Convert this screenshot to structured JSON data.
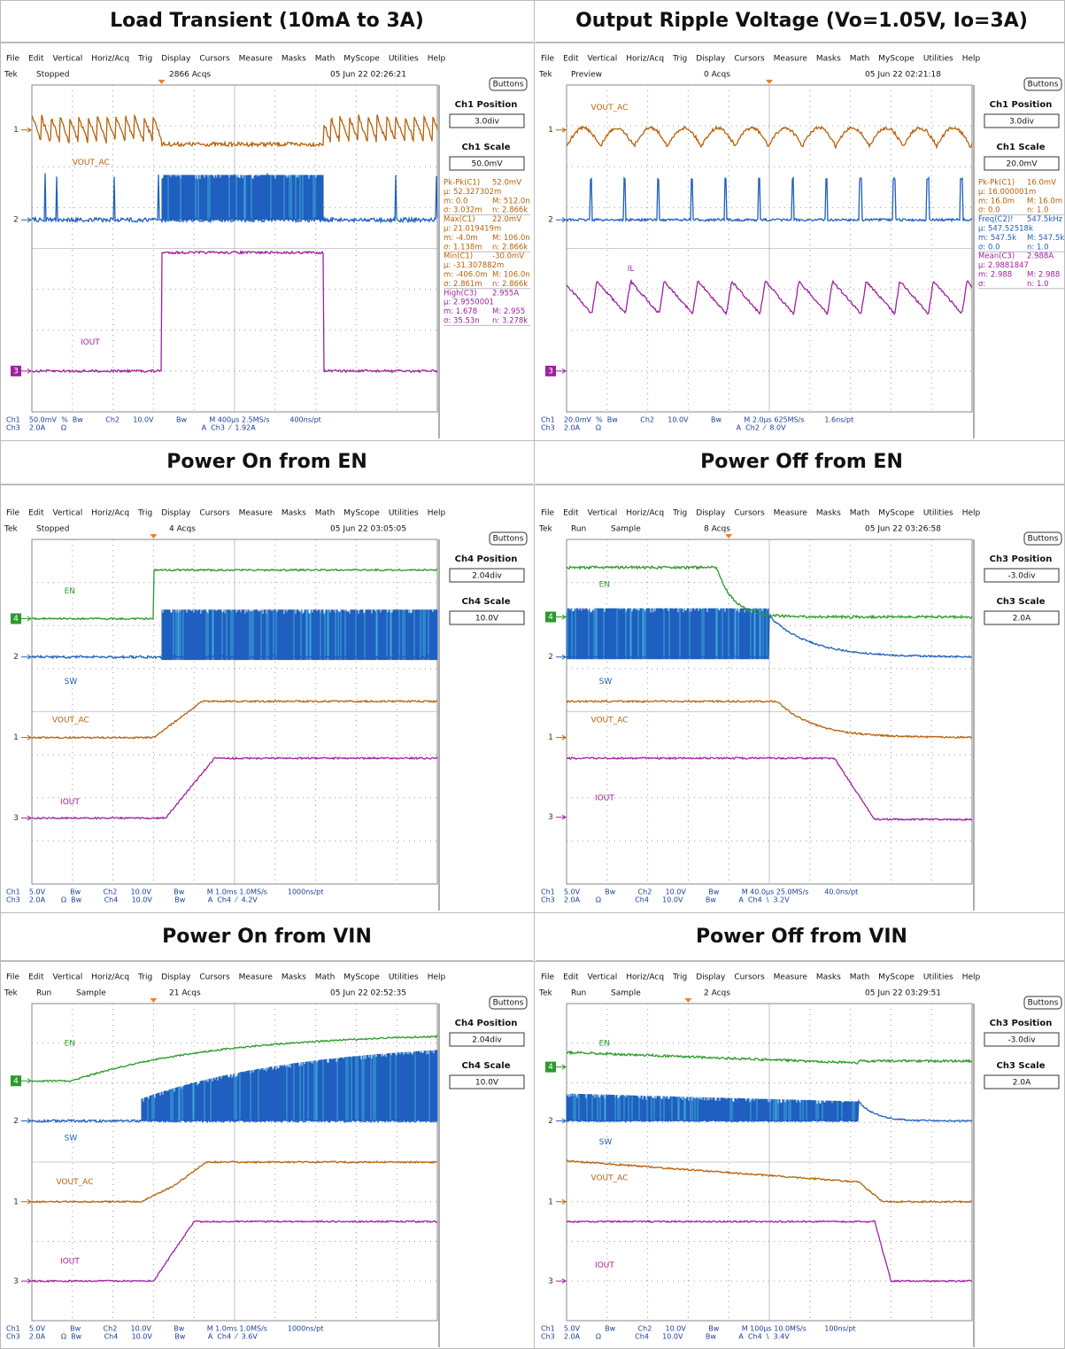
{
  "menu": [
    "File",
    "Edit",
    "Vertical",
    "Horiz/Acq",
    "Trig",
    "Display",
    "Cursors",
    "Measure",
    "Masks",
    "Math",
    "MyScope",
    "Utilities",
    "Help"
  ],
  "cells": [
    {
      "title": "Load Transient (10mA to 3A)",
      "status": [
        "Tek",
        "Stopped",
        "2866 Acqs",
        "05 Jun 22 02:26:21"
      ],
      "buttons": "Buttons",
      "position": {
        "label": "Ch1 Position",
        "value": "3.0div"
      },
      "scale": {
        "label": "Ch1 Scale",
        "value": "50.0mV"
      },
      "channels": [
        "VOUT_AC",
        "IOUT"
      ],
      "markers": [
        "1",
        "2",
        "3"
      ],
      "measurements": [
        {
          "color": "#b8620a",
          "lines": [
            [
              "Pk-Pk(C1)",
              "52.0mV"
            ],
            [
              "µ: 52.327302m"
            ],
            [
              "m: 0.0",
              "M: 512.0n"
            ],
            [
              "σ: 3.032m",
              "n: 2.866k"
            ]
          ]
        },
        {
          "color": "#b8620a",
          "lines": [
            [
              "Max(C1)",
              "22.0mV"
            ],
            [
              "µ: 21.019419m"
            ],
            [
              "m: -4.0m",
              "M: 106.0n"
            ],
            [
              "σ: 1.138m",
              "n: 2.866k"
            ]
          ]
        },
        {
          "color": "#b8620a",
          "lines": [
            [
              "Min(C1)",
              "-30.0mV"
            ],
            [
              "µ: -31.307882m"
            ],
            [
              "m: -406.0m",
              "M: 106.0n"
            ],
            [
              "σ: 2.861m",
              "n: 2.866k"
            ]
          ]
        },
        {
          "color": "#a020a0",
          "lines": [
            [
              "High(C3)",
              "2.955A"
            ],
            [
              "µ: 2.9550001"
            ],
            [
              "m: 1.678",
              "M: 2.955"
            ],
            [
              "σ: 35.53n",
              "n: 3.278k"
            ]
          ]
        }
      ],
      "footer": [
        "Ch1    50.0mV  %  Bw          Ch2      10.0V          Bw          M 400µs 2.5MS/s         400ns/pt",
        "Ch3    2.0A       Ω                                                            A  Ch3  ⁄  1.92A"
      ]
    },
    {
      "title": "Output Ripple Voltage (Vo=1.05V, Io=3A)",
      "status": [
        "Tek",
        "Preview",
        "0 Acqs",
        "05 Jun 22 02:21:18"
      ],
      "buttons": "Buttons",
      "position": {
        "label": "Ch1 Position",
        "value": "3.0div"
      },
      "scale": {
        "label": "Ch1 Scale",
        "value": "20.0mV"
      },
      "channels": [
        "VOUT_AC",
        "IL"
      ],
      "markers": [
        "1",
        "2",
        "3"
      ],
      "measurements": [
        {
          "color": "#b8620a",
          "lines": [
            [
              "Pk-Pk(C1)",
              "16.0mV"
            ],
            [
              "µ: 16.000001m"
            ],
            [
              "m: 16.0m",
              "M: 16.0m"
            ],
            [
              "σ: 0.0",
              "n: 1.0"
            ]
          ]
        },
        {
          "color": "#1f5fbf",
          "lines": [
            [
              "Freq(C2)!",
              "547.5kHz"
            ],
            [
              "µ: 547.52518k"
            ],
            [
              "m: 547.5k",
              "M: 547.5k"
            ],
            [
              "σ: 0.0",
              "n: 1.0"
            ]
          ]
        },
        {
          "color": "#a020a0",
          "lines": [
            [
              "Mean(C3)",
              "2.988A"
            ],
            [
              "µ: 2.9881847"
            ],
            [
              "m: 2.988",
              "M: 2.988"
            ],
            [
              "σ:",
              "n: 1.0"
            ]
          ]
        }
      ],
      "footer": [
        "Ch1    20.0mV  %  Bw          Ch2      10.0V          Bw          M 2.0µs 625MS/s         1.6ns/pt",
        "Ch3    2.0A       Ω                                                            A  Ch2  ⁄  8.0V"
      ]
    },
    {
      "title": "Power On from EN",
      "status": [
        "Tek",
        "Stopped",
        "4 Acqs",
        "05 Jun 22 03:05:05"
      ],
      "buttons": "Buttons",
      "position": {
        "label": "Ch4 Position",
        "value": "2.04div"
      },
      "scale": {
        "label": "Ch4 Scale",
        "value": "10.0V"
      },
      "channels": [
        "EN",
        "SW",
        "VOUT_AC",
        "IOUT"
      ],
      "markers": [
        "4",
        "2",
        "1",
        "3"
      ],
      "measurements": [],
      "footer": [
        "Ch1    5.0V           Bw          Ch2      10.0V          Bw          M 1.0ms 1.0MS/s         1000ns/pt",
        "Ch3    2.0A       Ω  Bw          Ch4      10.0V          Bw          A  Ch4  ⁄  4.2V"
      ]
    },
    {
      "title": "Power Off from EN",
      "status": [
        "Tek",
        "Run",
        "Sample",
        "8 Acqs",
        "05 Jun 22 03:26:58"
      ],
      "buttons": "Buttons",
      "position": {
        "label": "Ch3 Position",
        "value": "-3.0div"
      },
      "scale": {
        "label": "Ch3 Scale",
        "value": "2.0A"
      },
      "channels": [
        "EN",
        "SW",
        "VOUT_AC",
        "IOUT"
      ],
      "markers": [
        "4",
        "2",
        "1",
        "3"
      ],
      "measurements": [],
      "footer": [
        "Ch1    5.0V           Bw          Ch2      10.0V          Bw          M 40.0µs 25.0MS/s       40.0ns/pt",
        "Ch3    2.0A       Ω               Ch4      10.0V          Bw          A  Ch4  \\  3.2V"
      ]
    },
    {
      "title": "Power On from VIN",
      "status": [
        "Tek",
        "Run",
        "Sample",
        "21 Acqs",
        "05 Jun 22 02:52:35"
      ],
      "buttons": "Buttons",
      "position": {
        "label": "Ch4 Position",
        "value": "2.04div"
      },
      "scale": {
        "label": "Ch4 Scale",
        "value": "10.0V"
      },
      "channels": [
        "EN",
        "SW",
        "VOUT_AC",
        "IOUT"
      ],
      "markers": [
        "4",
        "2",
        "1",
        "3"
      ],
      "measurements": [],
      "footer": [
        "Ch1    5.0V           Bw          Ch2      10.0V          Bw          M 1.0ms 1.0MS/s         1000ns/pt",
        "Ch3    2.0A       Ω  Bw          Ch4      10.0V          Bw          A  Ch4  ⁄  3.6V"
      ]
    },
    {
      "title": "Power Off from VIN",
      "status": [
        "Tek",
        "Run",
        "Sample",
        "2 Acqs",
        "05 Jun 22 03:29:51"
      ],
      "buttons": "Buttons",
      "position": {
        "label": "Ch3 Position",
        "value": "-3.0div"
      },
      "scale": {
        "label": "Ch3 Scale",
        "value": "2.0A"
      },
      "channels": [
        "EN",
        "SW",
        "VOUT_AC",
        "IOUT"
      ],
      "markers": [
        "4",
        "2",
        "1",
        "3"
      ],
      "measurements": [],
      "footer": [
        "Ch1    5.0V           Bw          Ch2      10.0V          Bw          M 100µs 10.0MS/s        100ns/pt",
        "Ch3    2.0A       Ω               Ch4      10.0V          Bw          A  Ch4  \\  3.4V"
      ]
    }
  ]
}
